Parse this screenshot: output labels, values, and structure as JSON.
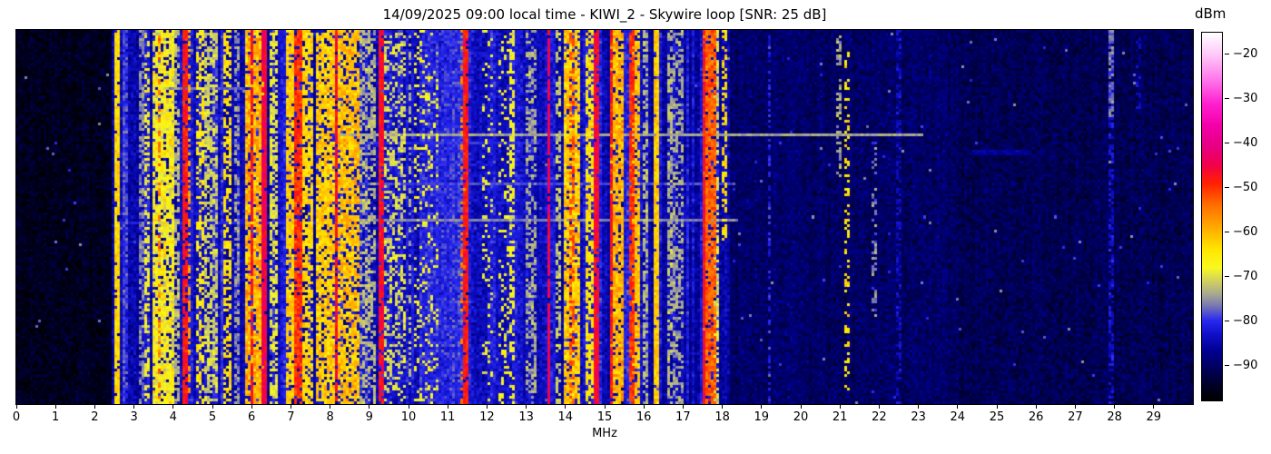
{
  "chart_data": {
    "type": "heatmap",
    "subtype": "radio-spectrogram-waterfall",
    "title": "14/09/2025 09:00 local time - KIWI_2 - Skywire loop [SNR: 25 dB]",
    "xlabel": "MHz",
    "x_range": [
      0,
      30
    ],
    "x_ticks": [
      0,
      1,
      2,
      3,
      4,
      5,
      6,
      7,
      8,
      9,
      10,
      11,
      12,
      13,
      14,
      15,
      16,
      17,
      18,
      19,
      20,
      21,
      22,
      23,
      24,
      25,
      26,
      27,
      28,
      29
    ],
    "grid": false,
    "legend": "none",
    "colorbar": {
      "label": "dBm",
      "vmax": -15,
      "vmin": -98,
      "ticks": [
        {
          "v": -20,
          "label": "−20"
        },
        {
          "v": -30,
          "label": "−30"
        },
        {
          "v": -40,
          "label": "−40"
        },
        {
          "v": -50,
          "label": "−50"
        },
        {
          "v": -60,
          "label": "−60"
        },
        {
          "v": -70,
          "label": "−70"
        },
        {
          "v": -80,
          "label": "−80"
        },
        {
          "v": -90,
          "label": "−90"
        }
      ],
      "colormap_stops": [
        [
          -98,
          "#000000"
        ],
        [
          -95,
          "#000020"
        ],
        [
          -91,
          "#000058"
        ],
        [
          -87,
          "#000090"
        ],
        [
          -83,
          "#1010c8"
        ],
        [
          -80,
          "#2828f0"
        ],
        [
          -77,
          "#7070b8"
        ],
        [
          -74,
          "#a8a890"
        ],
        [
          -71,
          "#d0d060"
        ],
        [
          -68,
          "#f8f820"
        ],
        [
          -64,
          "#ffe600"
        ],
        [
          -59,
          "#ffaa00"
        ],
        [
          -54,
          "#ff7000"
        ],
        [
          -49,
          "#ff2000"
        ],
        [
          -45,
          "#f20048"
        ],
        [
          -41,
          "#e60080"
        ],
        [
          -36,
          "#f300a8"
        ],
        [
          -31,
          "#ff20d0"
        ],
        [
          -26,
          "#ff70e8"
        ],
        [
          -20,
          "#ffc8f8"
        ],
        [
          -15,
          "#ffffff"
        ]
      ]
    },
    "noise_floor_regions": [
      {
        "f": [
          0,
          2.45
        ],
        "base": -96,
        "stripe": 1.5
      },
      {
        "f": [
          2.45,
          9.5
        ],
        "base": -87,
        "stripe": 7
      },
      {
        "f": [
          9.5,
          10.3
        ],
        "base": -85,
        "stripe": 4
      },
      {
        "f": [
          10.3,
          11.4
        ],
        "base": -82,
        "stripe": 3
      },
      {
        "f": [
          11.4,
          13.5
        ],
        "base": -85,
        "stripe": 4
      },
      {
        "f": [
          13.5,
          16.0
        ],
        "base": -86,
        "stripe": 6
      },
      {
        "f": [
          16.0,
          18.2
        ],
        "base": -87,
        "stripe": 6
      },
      {
        "f": [
          18.2,
          24.0
        ],
        "base": -91,
        "stripe": 2
      },
      {
        "f": [
          24.0,
          30.01
        ],
        "base": -92,
        "stripe": 1.5
      }
    ],
    "row_events": [
      {
        "y": 0.155,
        "f": [
          3.9,
          5.7
        ],
        "db": -78
      },
      {
        "y": 0.28,
        "f": [
          8.3,
          23.0
        ],
        "db": -74
      },
      {
        "y": 0.3,
        "f": [
          9.0,
          13.2
        ],
        "db": -80
      },
      {
        "y": 0.41,
        "f": [
          8.4,
          18.2
        ],
        "db": -79
      },
      {
        "y": 0.505,
        "f": [
          8.4,
          18.3
        ],
        "db": -76
      },
      {
        "y": 0.51,
        "f": [
          2.6,
          8.4
        ],
        "db": -81
      },
      {
        "y": 0.32,
        "f": [
          24.4,
          25.7
        ],
        "db": -86
      },
      {
        "y": 0.33,
        "f": [
          24.4,
          25.8
        ],
        "db": -87
      }
    ],
    "signals": [
      {
        "f": [
          2.54,
          2.59
        ],
        "db": -63,
        "duty": 0.92
      },
      {
        "f": [
          2.76,
          2.81
        ],
        "db": -79,
        "duty": 0.7
      },
      {
        "f": [
          3.16,
          3.24
        ],
        "db": -76,
        "duty": 0.6
      },
      {
        "f": [
          3.3,
          3.38
        ],
        "db": -68,
        "duty": 0.5
      },
      {
        "f": [
          3.5,
          3.97
        ],
        "db": -67,
        "duty": 0.85,
        "sp": 7
      },
      {
        "f": [
          3.62,
          3.68
        ],
        "db": -55,
        "duty": 0.45,
        "sp": 5
      },
      {
        "f": [
          3.97,
          4.16
        ],
        "db": -73,
        "duty": 0.6
      },
      {
        "f": [
          4.28,
          4.32
        ],
        "db": -48,
        "duty": 0.9
      },
      {
        "f": [
          4.38,
          4.44
        ],
        "db": -58,
        "duty": 0.5
      },
      {
        "f": [
          4.6,
          4.73
        ],
        "db": -65,
        "duty": 0.5
      },
      {
        "f": [
          4.85,
          5.07
        ],
        "db": -71,
        "duty": 0.6
      },
      {
        "f": [
          5.28,
          5.43
        ],
        "db": -64,
        "duty": 0.55
      },
      {
        "f": [
          5.6,
          5.68
        ],
        "db": -75,
        "duty": 0.55
      },
      {
        "f": [
          5.86,
          6.26
        ],
        "db": -60,
        "duty": 0.85,
        "sp": 7
      },
      {
        "f": [
          5.99,
          6.03
        ],
        "db": -47,
        "duty": 0.9
      },
      {
        "f": [
          6.29,
          6.33
        ],
        "db": -45,
        "duty": 0.95
      },
      {
        "f": [
          6.5,
          6.63
        ],
        "db": -69,
        "duty": 0.6
      },
      {
        "f": [
          6.88,
          7.03
        ],
        "db": -62,
        "duty": 0.8
      },
      {
        "f": [
          7.11,
          7.26
        ],
        "db": -50,
        "duty": 0.85,
        "sp": 5
      },
      {
        "f": [
          7.3,
          7.52
        ],
        "db": -63,
        "duty": 0.7
      },
      {
        "f": [
          7.64,
          8.1
        ],
        "db": -62,
        "duty": 0.8,
        "sp": 6
      },
      {
        "f": [
          8.13,
          8.17
        ],
        "db": -47,
        "duty": 0.92
      },
      {
        "f": [
          8.24,
          8.7
        ],
        "db": -61,
        "duty": 0.78,
        "sp": 6
      },
      {
        "f": [
          8.8,
          9.1
        ],
        "db": -73,
        "duty": 0.5
      },
      {
        "f": [
          9.28,
          9.32
        ],
        "db": -47,
        "duty": 0.9
      },
      {
        "f": [
          9.4,
          9.9
        ],
        "db": -70,
        "duty": 0.4
      },
      {
        "f": [
          10.0,
          10.06
        ],
        "db": -73,
        "duty": 0.5
      },
      {
        "f": [
          10.2,
          10.7
        ],
        "db": -68,
        "duty": 0.18
      },
      {
        "f": [
          11.38,
          11.42
        ],
        "db": -55,
        "duty": 0.25
      },
      {
        "f": [
          11.44,
          11.48
        ],
        "db": -48,
        "duty": 0.88
      },
      {
        "f": [
          11.9,
          12.1
        ],
        "db": -68,
        "duty": 0.15
      },
      {
        "f": [
          12.3,
          12.7
        ],
        "db": -67,
        "duty": 0.18
      },
      {
        "f": [
          12.62,
          12.66
        ],
        "db": -68,
        "duty": 0.45
      },
      {
        "f": [
          13.0,
          13.25
        ],
        "db": -74,
        "duty": 0.5
      },
      {
        "f": [
          13.56,
          13.6
        ],
        "db": -44,
        "duty": 0.93
      },
      {
        "f": [
          13.78,
          13.86
        ],
        "db": -72,
        "duty": 0.5
      },
      {
        "f": [
          14.0,
          14.36
        ],
        "db": -62,
        "duty": 0.82,
        "sp": 6
      },
      {
        "f": [
          14.12,
          14.18
        ],
        "db": -52,
        "duty": 0.5
      },
      {
        "f": [
          14.55,
          14.7
        ],
        "db": -64,
        "duty": 0.65
      },
      {
        "f": [
          14.77,
          14.81
        ],
        "db": -46,
        "duty": 0.92
      },
      {
        "f": [
          15.16,
          15.2
        ],
        "db": -48,
        "duty": 0.9
      },
      {
        "f": [
          15.2,
          15.45
        ],
        "db": -60,
        "duty": 0.85,
        "sp": 6
      },
      {
        "f": [
          15.64,
          15.7
        ],
        "db": -50,
        "duty": 0.85
      },
      {
        "f": [
          15.7,
          15.85
        ],
        "db": -61,
        "duty": 0.75
      },
      {
        "f": [
          16.0,
          16.05
        ],
        "db": -73,
        "duty": 0.6
      },
      {
        "f": [
          16.28,
          16.32
        ],
        "db": -62,
        "duty": 0.95
      },
      {
        "f": [
          16.63,
          16.68
        ],
        "db": -73,
        "duty": 0.6
      },
      {
        "f": [
          16.8,
          17.0
        ],
        "db": -74,
        "duty": 0.5
      },
      {
        "f": [
          17.5,
          17.55
        ],
        "db": -47,
        "duty": 0.9
      },
      {
        "f": [
          17.55,
          17.8
        ],
        "db": -53,
        "duty": 0.85,
        "sp": 5
      },
      {
        "f": [
          17.82,
          17.88
        ],
        "db": -70,
        "duty": 0.6
      },
      {
        "f": [
          18.02,
          18.06
        ],
        "db": -63,
        "duty": 0.5,
        "y": [
          0,
          0.55
        ]
      },
      {
        "f": [
          19.18,
          19.23
        ],
        "db": -81,
        "duty": 0.45
      },
      {
        "f": [
          20.96,
          21.0
        ],
        "db": -74,
        "duty": 0.4,
        "y": [
          0.02,
          0.38
        ]
      },
      {
        "f": [
          21.12,
          21.2
        ],
        "db": -64,
        "duty": 0.32,
        "y": [
          0.05,
          0.95
        ]
      },
      {
        "f": [
          21.86,
          21.93
        ],
        "db": -76,
        "duty": 0.4,
        "y": [
          0.3,
          0.78
        ]
      },
      {
        "f": [
          22.48,
          22.53
        ],
        "db": -84,
        "duty": 0.5
      },
      {
        "f": [
          27.88,
          27.93
        ],
        "db": -83,
        "duty": 0.55
      },
      {
        "f": [
          27.89,
          27.92
        ],
        "db": -77,
        "duty": 0.8,
        "y": [
          0.0,
          0.22
        ]
      },
      {
        "f": [
          28.58,
          28.63
        ],
        "db": -85,
        "duty": 0.4,
        "y": [
          0.02,
          0.2
        ]
      }
    ]
  }
}
